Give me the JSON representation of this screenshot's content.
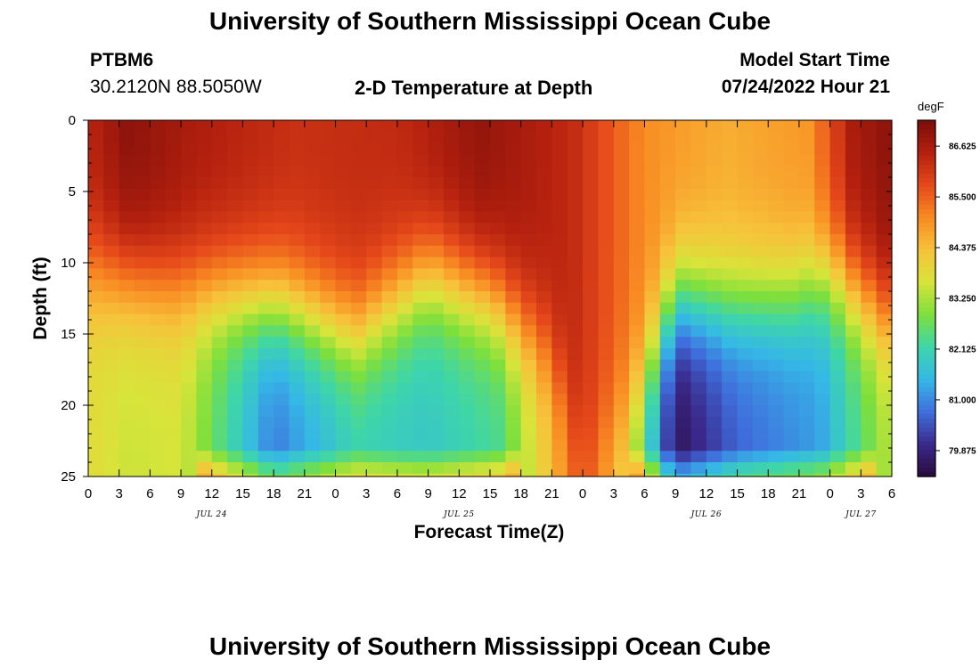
{
  "header": {
    "title": "University of Southern Mississippi Ocean Cube",
    "station": "PTBM6",
    "coords": "30.2120N  88.5050W",
    "subtitle": "2-D Temperature at Depth",
    "model_label": "Model Start Time",
    "model_time": "07/24/2022 Hour 21"
  },
  "footer": {
    "title": "University of Southern Mississippi Ocean Cube"
  },
  "colorbar": {
    "units": "degF",
    "min": 79.3,
    "max": 87.2,
    "ticks": [
      "86.625",
      "85.500",
      "84.375",
      "83.250",
      "82.125",
      "81.000",
      "79.875"
    ],
    "colors": [
      "#2a0a3c",
      "#3a2a8c",
      "#3f6fdd",
      "#35b8e6",
      "#3ed6a8",
      "#7ddf3c",
      "#d8e43a",
      "#f7c23a",
      "#f88a22",
      "#e5481a",
      "#b3200e",
      "#7a0d0a"
    ]
  },
  "chart_data": {
    "type": "heatmap",
    "title": "2-D Temperature at Depth",
    "xlabel": "Forecast Time(Z)",
    "ylabel": "Depth (ft)",
    "x_tick_labels": [
      "0",
      "3",
      "6",
      "9",
      "12",
      "15",
      "18",
      "21",
      "0",
      "3",
      "6",
      "9",
      "12",
      "15",
      "18",
      "21",
      "0",
      "3",
      "6",
      "9",
      "12",
      "15",
      "18",
      "21",
      "0",
      "3",
      "6"
    ],
    "y_tick_labels": [
      "0",
      "5",
      "10",
      "15",
      "20",
      "25"
    ],
    "date_labels": [
      {
        "label": "JUL 24",
        "hour": 12
      },
      {
        "label": "JUL 25",
        "hour": 36
      },
      {
        "label": "JUL 26",
        "hour": 60
      },
      {
        "label": "JUL 27",
        "hour": 75
      }
    ],
    "xlim_hours": [
      0,
      78
    ],
    "ylim_ft": [
      0,
      25
    ],
    "value_range_degF": [
      79.3,
      87.2
    ],
    "surface_temp_degF": [
      {
        "hour": 0,
        "value": 86.4
      },
      {
        "hour": 4,
        "value": 87.0
      },
      {
        "hour": 10,
        "value": 86.6
      },
      {
        "hour": 20,
        "value": 86.2
      },
      {
        "hour": 30,
        "value": 86.3
      },
      {
        "hour": 38,
        "value": 86.9
      },
      {
        "hour": 47,
        "value": 86.3
      },
      {
        "hour": 54,
        "value": 85.0
      },
      {
        "hour": 62,
        "value": 84.6
      },
      {
        "hour": 70,
        "value": 84.9
      },
      {
        "hour": 74,
        "value": 86.6
      },
      {
        "hour": 78,
        "value": 87.0
      }
    ],
    "thermocline_depth_ft": [
      {
        "hour": 0,
        "value": 10.5
      },
      {
        "hour": 6,
        "value": 11.5
      },
      {
        "hour": 12,
        "value": 12.0
      },
      {
        "hour": 19,
        "value": 13.0
      },
      {
        "hour": 26,
        "value": 15.0
      },
      {
        "hour": 33,
        "value": 11.0
      },
      {
        "hour": 39,
        "value": 12.5
      },
      {
        "hour": 45,
        "value": 16.5
      },
      {
        "hour": 48,
        "value": 23.5
      },
      {
        "hour": 53,
        "value": 19.5
      },
      {
        "hour": 57,
        "value": 12.5
      },
      {
        "hour": 62,
        "value": 13.0
      },
      {
        "hour": 68,
        "value": 12.5
      },
      {
        "hour": 72,
        "value": 11.0
      },
      {
        "hour": 78,
        "value": 14.0
      }
    ],
    "bottom_min_temp_degF": [
      {
        "hour": 0,
        "value": 83.8
      },
      {
        "hour": 4,
        "value": 83.5
      },
      {
        "hour": 9,
        "value": 83.6
      },
      {
        "hour": 18,
        "value": 80.8
      },
      {
        "hour": 26,
        "value": 82.0
      },
      {
        "hour": 33,
        "value": 81.8
      },
      {
        "hour": 40,
        "value": 82.3
      },
      {
        "hour": 48,
        "value": 85.6
      },
      {
        "hour": 52,
        "value": 84.0
      },
      {
        "hour": 57,
        "value": 79.5
      },
      {
        "hour": 63,
        "value": 80.6
      },
      {
        "hour": 71,
        "value": 81.2
      },
      {
        "hour": 78,
        "value": 83.4
      }
    ]
  }
}
